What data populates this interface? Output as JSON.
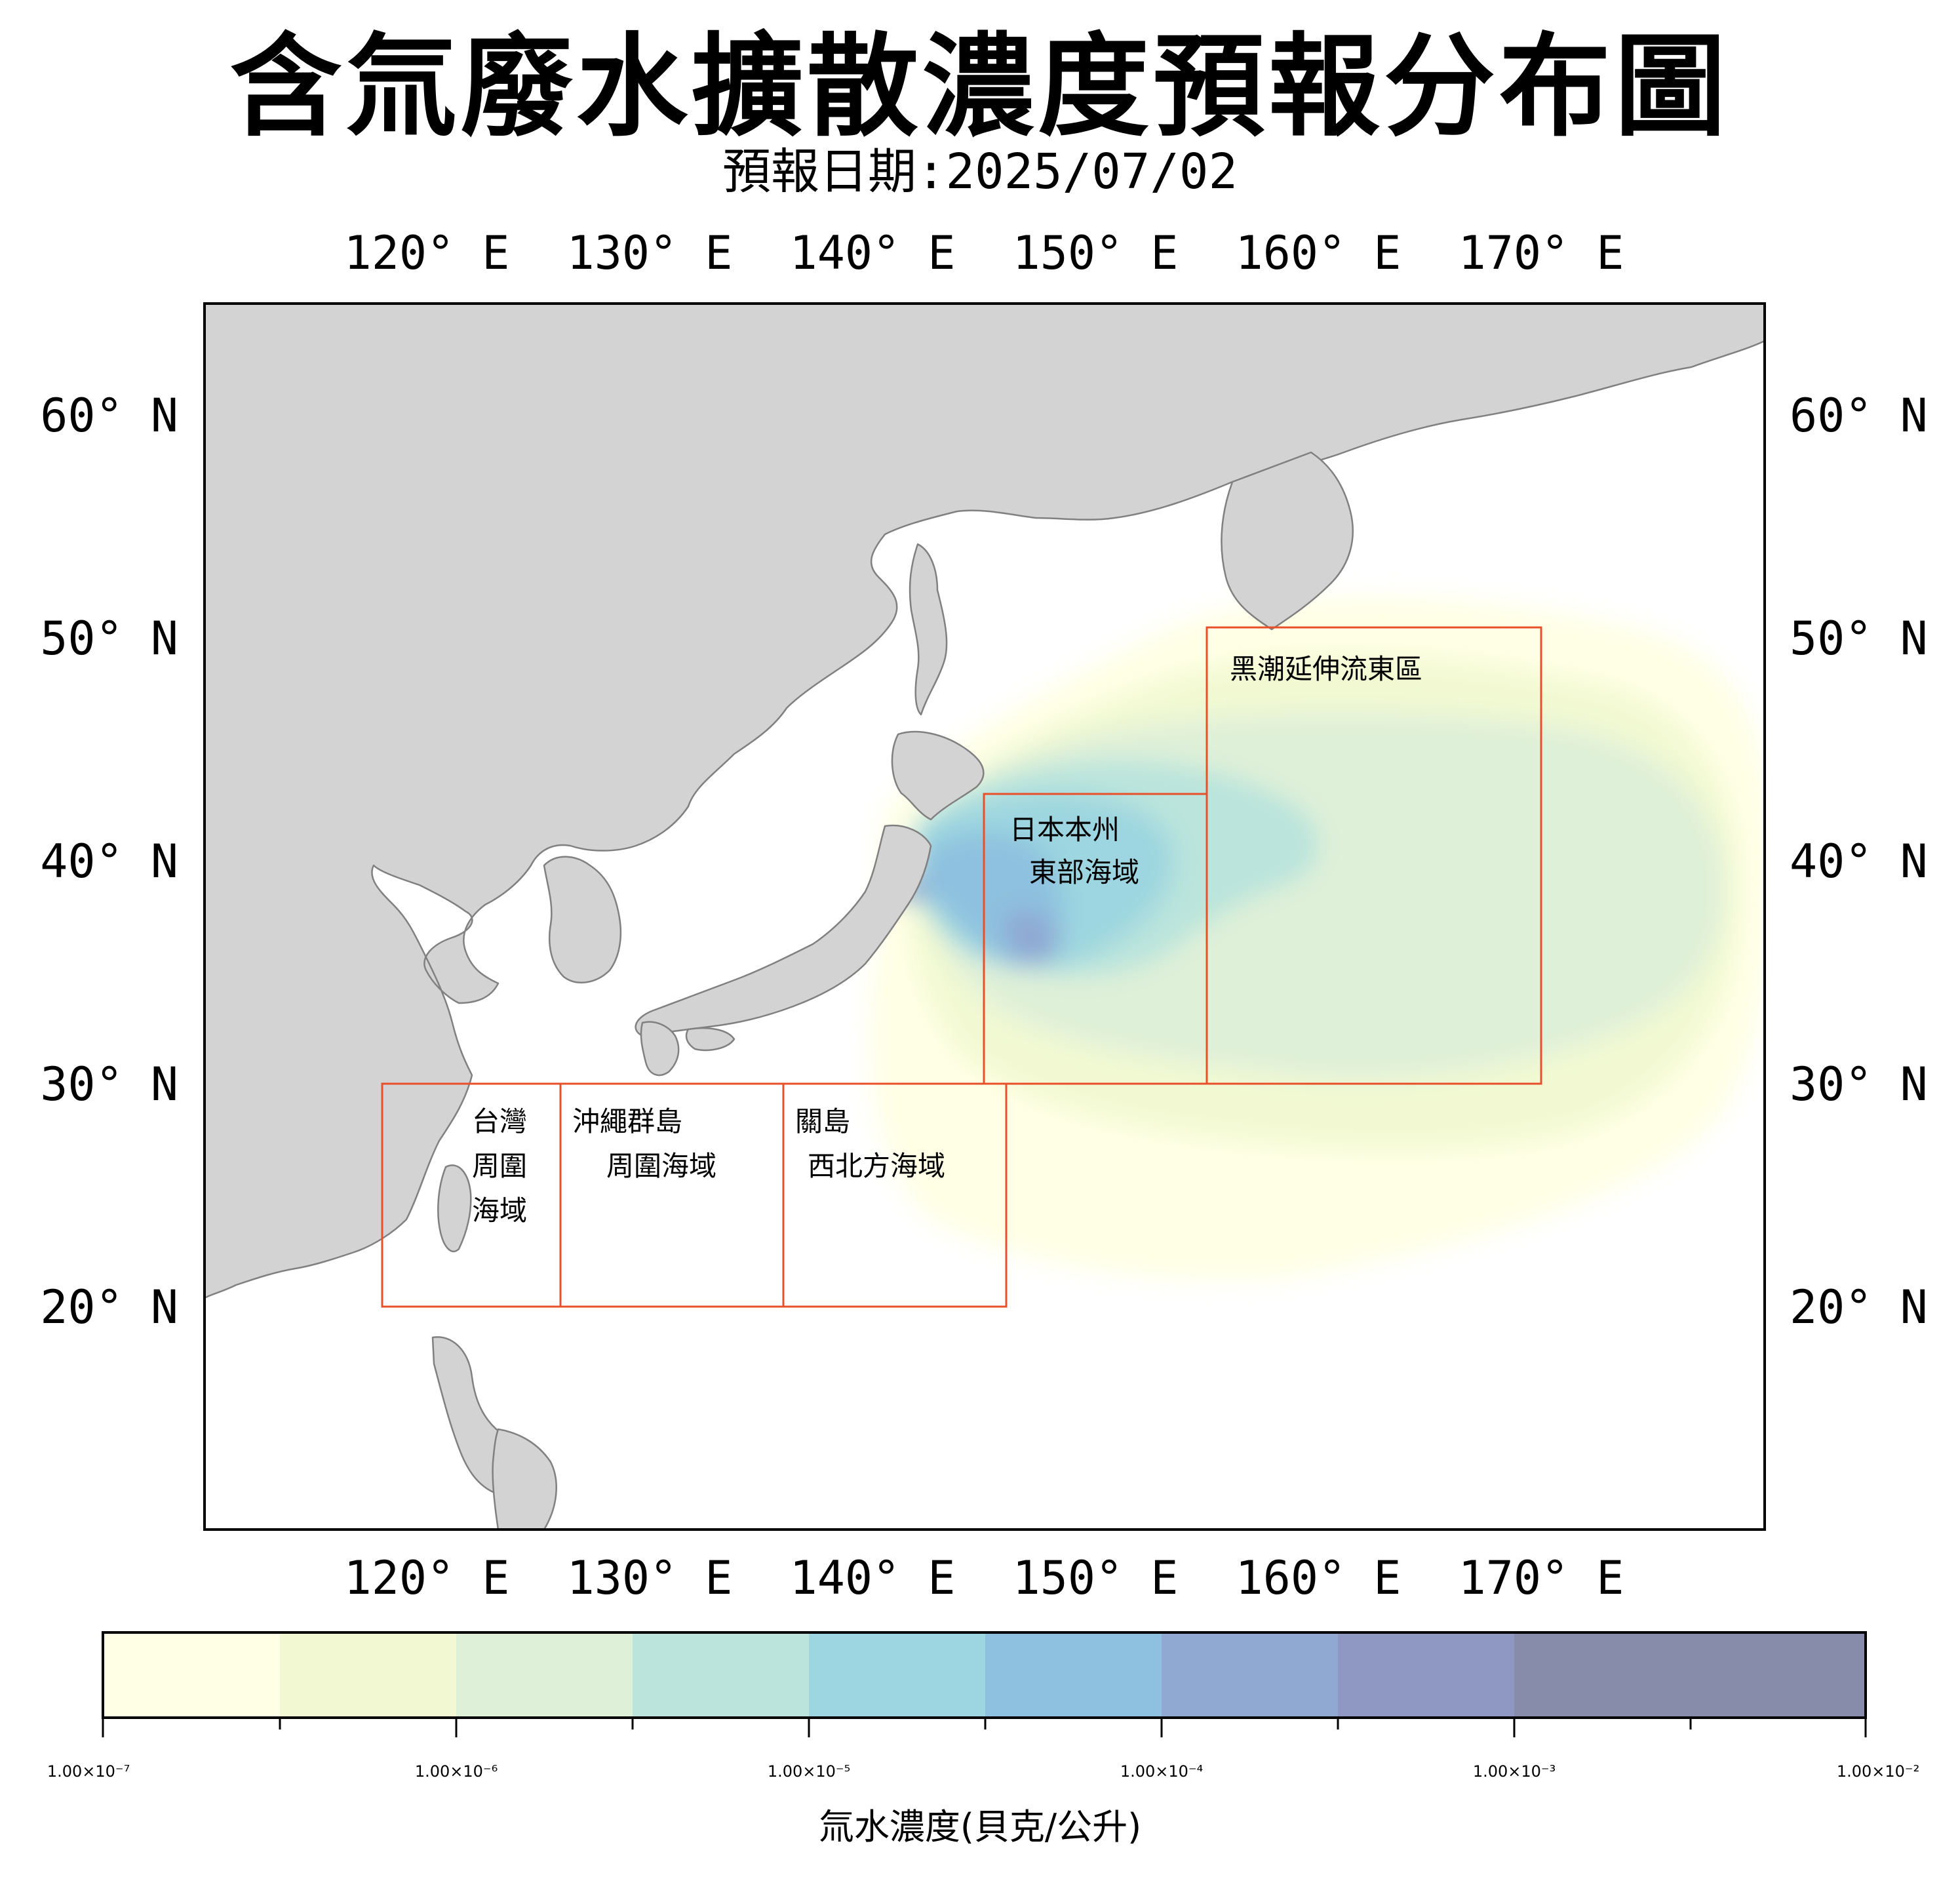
{
  "title": "含氚廢水擴散濃度預報分布圖",
  "subtitle": "預報日期:2025/07/02",
  "map": {
    "lon_range": [
      110,
      180
    ],
    "lat_range": [
      10,
      65
    ],
    "lon_ticks": [
      "120° E",
      "130° E",
      "140° E",
      "150° E",
      "160° E",
      "170° E"
    ],
    "lat_ticks": [
      "60° N",
      "50° N",
      "40° N",
      "30° N",
      "20° N"
    ],
    "land_color": "#d3d3d3",
    "coast_color": "#808080",
    "box_color": "#e8502a"
  },
  "regions": [
    {
      "name": "taiwan",
      "lines": [
        "台灣",
        "周圍",
        "海域"
      ],
      "lon": [
        118,
        126
      ],
      "lat": [
        20,
        30
      ]
    },
    {
      "name": "okinawa",
      "lines": [
        "沖繩群島",
        "周圍海域"
      ],
      "lon": [
        126,
        136
      ],
      "lat": [
        20,
        30
      ]
    },
    {
      "name": "guam",
      "lines": [
        "關島",
        "西北方海域"
      ],
      "lon": [
        136,
        146
      ],
      "lat": [
        20,
        30
      ]
    },
    {
      "name": "honshu-east",
      "lines": [
        "日本本州",
        "東部海域"
      ],
      "lon": [
        145,
        155
      ],
      "lat": [
        30,
        42.5
      ]
    },
    {
      "name": "kuroshio",
      "lines": [
        "黑潮延伸流東區"
      ],
      "lon": [
        155,
        170
      ],
      "lat": [
        30,
        50.5
      ]
    }
  ],
  "colorbar": {
    "title": "氚水濃度(貝克/公升)",
    "colors": [
      "#ffffe5",
      "#f2f9d2",
      "#dff0d8",
      "#bae4dc",
      "#9dd6e0",
      "#8ec1df",
      "#8fa9d3",
      "#8f98c2",
      "#868ca9"
    ],
    "tick_labels": [
      "1.00×10⁻⁷",
      "1.00×10⁻⁶",
      "1.00×10⁻⁵",
      "1.00×10⁻⁴",
      "1.00×10⁻³",
      "1.00×10⁻²"
    ]
  }
}
